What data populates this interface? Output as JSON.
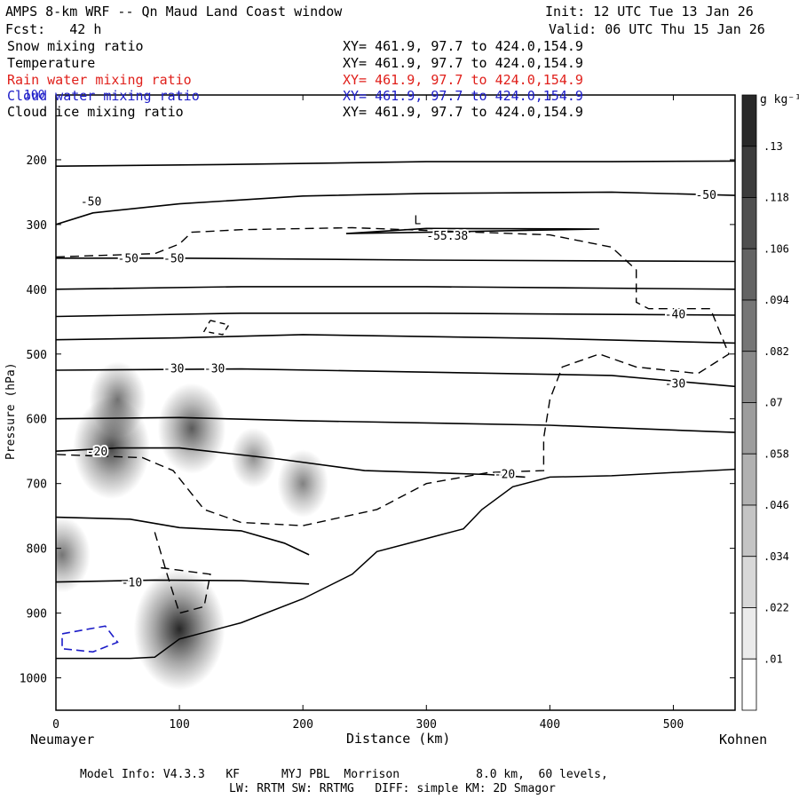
{
  "header": {
    "title": "AMPS 8-km WRF -- Qn Maud Land Coast window",
    "init": "Init: 12 UTC Tue 13 Jan 26",
    "fcst": "Fcst:   42 h",
    "valid": "Valid: 06 UTC Thu 15 Jan 26"
  },
  "fields": [
    {
      "label": "Snow mixing ratio",
      "xy": "XY= 461.9, 97.7 to 424.0,154.9",
      "color": "#000000"
    },
    {
      "label": "Temperature",
      "xy": "XY= 461.9, 97.7 to 424.0,154.9",
      "color": "#000000"
    },
    {
      "label": "Rain water mixing ratio",
      "xy": "XY= 461.9, 97.7 to 424.0,154.9",
      "color": "#e0201b"
    },
    {
      "label": "Cloud water mixing ratio",
      "xy": "XY= 461.9, 97.7 to 424.0,154.9",
      "color": "#1c1cc8"
    },
    {
      "label": "Cloud ice mixing ratio",
      "xy": "XY= 461.9, 97.7 to 424.0,154.9",
      "color": "#000000"
    }
  ],
  "colorbar": {
    "unit": "g kg⁻¹",
    "levels": [
      ".13",
      ".118",
      ".106",
      ".094",
      ".082",
      ".07",
      ".058",
      ".046",
      ".034",
      ".022",
      ".01"
    ]
  },
  "footer": {
    "line1": "Model Info: V4.3.3   KF      MYJ PBL  Morrison           8.0 km,  60 levels,",
    "line2": "LW: RRTM SW: RRTMG   DIFF: simple KM: 2D Smagor"
  },
  "chart_data": {
    "type": "cross-section",
    "title": "AMPS 8-km WRF -- Qn Maud Land Coast window",
    "xlabel": "Distance (km)",
    "ylabel": "Pressure (hPa)",
    "xlim": [
      0,
      550
    ],
    "ylim": [
      1050,
      100
    ],
    "xticks": [
      0,
      100,
      200,
      300,
      400,
      500
    ],
    "yticks": [
      100,
      200,
      300,
      400,
      500,
      600,
      700,
      800,
      900,
      1000
    ],
    "left_endpoint": "Neumayer",
    "right_endpoint": "Kohnen",
    "temperature_labels": [
      {
        "text": "-50",
        "x": 20,
        "p": 265
      },
      {
        "text": "-50",
        "x": 50,
        "p": 353
      },
      {
        "text": "-50",
        "x": 87,
        "p": 353
      },
      {
        "text": "-50",
        "x": 518,
        "p": 255
      },
      {
        "text": "-55.38",
        "x": 300,
        "p": 318
      },
      {
        "text": "L",
        "x": 290,
        "p": 294
      },
      {
        "text": "-40",
        "x": 493,
        "p": 439
      },
      {
        "text": "-30",
        "x": 87,
        "p": 523
      },
      {
        "text": "-30",
        "x": 120,
        "p": 523
      },
      {
        "text": "-30",
        "x": 493,
        "p": 546
      },
      {
        "text": "-20",
        "x": 25,
        "p": 651
      },
      {
        "text": "-20",
        "x": 355,
        "p": 686
      },
      {
        "text": "-10",
        "x": 53,
        "p": 853
      }
    ],
    "temperature_contours": [
      {
        "level": -50,
        "points": [
          [
            0,
            210
          ],
          [
            150,
            207
          ],
          [
            300,
            203
          ],
          [
            450,
            203
          ],
          [
            550,
            202
          ]
        ]
      },
      {
        "level": -50,
        "points": [
          [
            0,
            300
          ],
          [
            30,
            282
          ],
          [
            100,
            268
          ],
          [
            200,
            256
          ],
          [
            300,
            252
          ],
          [
            450,
            250
          ],
          [
            550,
            255
          ]
        ]
      },
      {
        "level": -55.38,
        "points": [
          [
            235,
            314
          ],
          [
            300,
            306
          ],
          [
            440,
            307
          ],
          [
            300,
            312
          ],
          [
            235,
            314
          ]
        ]
      },
      {
        "level": -50,
        "points": [
          [
            0,
            352
          ],
          [
            100,
            352
          ],
          [
            300,
            355
          ],
          [
            550,
            357
          ]
        ]
      },
      {
        "level": -40,
        "points": [
          [
            0,
            400
          ],
          [
            150,
            396
          ],
          [
            300,
            396
          ],
          [
            550,
            400
          ]
        ]
      },
      {
        "level": -40,
        "points": [
          [
            0,
            442
          ],
          [
            150,
            437
          ],
          [
            300,
            437
          ],
          [
            550,
            440
          ]
        ]
      },
      {
        "level": -40,
        "points": [
          [
            0,
            478
          ],
          [
            100,
            475
          ],
          [
            200,
            470
          ],
          [
            400,
            476
          ],
          [
            550,
            483
          ]
        ]
      },
      {
        "level": -30,
        "points": [
          [
            0,
            525
          ],
          [
            150,
            523
          ],
          [
            300,
            528
          ],
          [
            450,
            533
          ],
          [
            550,
            550
          ]
        ]
      },
      {
        "level": -30,
        "points": [
          [
            0,
            600
          ],
          [
            100,
            598
          ],
          [
            200,
            603
          ],
          [
            400,
            610
          ],
          [
            550,
            621
          ]
        ]
      },
      {
        "level": -20,
        "points": [
          [
            0,
            650
          ],
          [
            50,
            645
          ],
          [
            100,
            645
          ],
          [
            180,
            662
          ],
          [
            250,
            680
          ],
          [
            350,
            686
          ],
          [
            380,
            690
          ]
        ]
      },
      {
        "level": -10,
        "points": [
          [
            0,
            752
          ],
          [
            60,
            755
          ],
          [
            100,
            768
          ],
          [
            150,
            773
          ],
          [
            185,
            792
          ],
          [
            205,
            810
          ]
        ]
      },
      {
        "level": -10,
        "points": [
          [
            0,
            852
          ],
          [
            80,
            849
          ],
          [
            150,
            850
          ],
          [
            205,
            855
          ]
        ]
      }
    ],
    "terrain_pressure": [
      [
        0,
        970
      ],
      [
        60,
        970
      ],
      [
        80,
        968
      ],
      [
        100,
        940
      ],
      [
        150,
        915
      ],
      [
        200,
        878
      ],
      [
        240,
        840
      ],
      [
        260,
        805
      ],
      [
        280,
        795
      ],
      [
        310,
        780
      ],
      [
        330,
        770
      ],
      [
        345,
        740
      ],
      [
        370,
        705
      ],
      [
        400,
        690
      ],
      [
        450,
        688
      ],
      [
        550,
        678
      ]
    ],
    "cloud_water_contour": {
      "level": 0.01,
      "color": "#1c1cc8",
      "points": [
        [
          5,
          932
        ],
        [
          40,
          920
        ],
        [
          50,
          945
        ],
        [
          30,
          960
        ],
        [
          5,
          955
        ],
        [
          5,
          932
        ]
      ]
    },
    "snow_shading": [
      {
        "x": 45,
        "p": 645,
        "value": 0.1
      },
      {
        "x": 50,
        "p": 570,
        "value": 0.058
      },
      {
        "x": 110,
        "p": 615,
        "value": 0.082
      },
      {
        "x": 200,
        "p": 700,
        "value": 0.046
      },
      {
        "x": 160,
        "p": 660,
        "value": 0.034
      },
      {
        "x": 5,
        "p": 810,
        "value": 0.058
      },
      {
        "x": 100,
        "p": 925,
        "value": 0.13
      }
    ]
  }
}
